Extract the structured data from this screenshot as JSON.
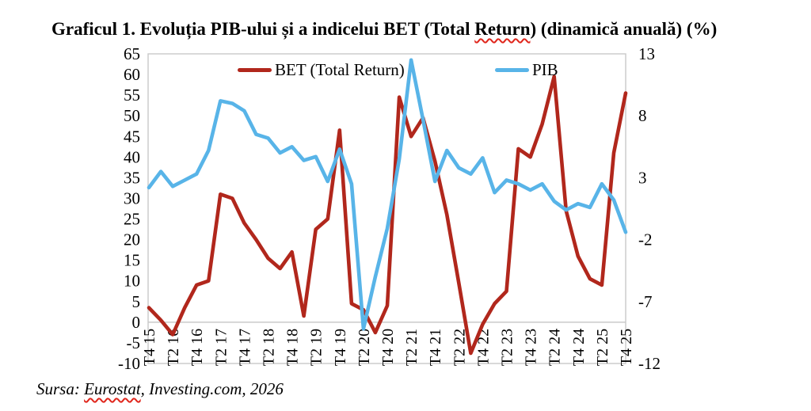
{
  "title": {
    "prefix": "Graficul 1. Evoluția PIB-ului și a indicelui BET (Total ",
    "spellcheck_word": "Return",
    "suffix": ") (dinamică anuală) (%)"
  },
  "source": {
    "prefix": "Sursa: ",
    "spellcheck_word": "Eurostat",
    "suffix": ", Investing.com, 2026"
  },
  "legend": {
    "items": [
      {
        "label": "BET (Total Return)",
        "color": "#b1271c"
      },
      {
        "label": "PIB",
        "color": "#58b4e8"
      }
    ],
    "position": "top-inside"
  },
  "colors": {
    "bet_line": "#b1271c",
    "pib_line": "#58b4e8",
    "gridline": "#c9c9c9",
    "plot_border": "#c9c9c9",
    "text": "#000000",
    "spellcheck_underline": "#e0261c",
    "background": "#ffffff"
  },
  "chart_data": {
    "type": "line",
    "title": "Graficul 1. Evoluția PIB-ului și a indicelui BET (Total Return) (dinamică anuală) (%)",
    "x": [
      "T4 15",
      "T1 16",
      "T2 16",
      "T3 16",
      "T4 16",
      "T1 17",
      "T2 17",
      "T3 17",
      "T4 17",
      "T1 18",
      "T2 18",
      "T3 18",
      "T4 18",
      "T1 19",
      "T2 19",
      "T3 19",
      "T4 19",
      "T1 20",
      "T2 20",
      "T3 20",
      "T4 20",
      "T1 21",
      "T2 21",
      "T3 21",
      "T4 21",
      "T1 22",
      "T2 22",
      "T3 22",
      "T4 22",
      "T1 23",
      "T2 23",
      "T3 23",
      "T4 23",
      "T1 24",
      "T2 24",
      "T3 24",
      "T4 24",
      "T1 25",
      "T2 25",
      "T3 25",
      "T4 25"
    ],
    "x_tick_labels": [
      "T4 15",
      "T2 16",
      "T4 16",
      "T2 17",
      "T4 17",
      "T2 18",
      "T4 18",
      "T2 19",
      "T4 19",
      "T2 20",
      "T4 20",
      "T2 21",
      "T4 21",
      "T2 22",
      "T4 22",
      "T2 23",
      "T4 23",
      "T2 24",
      "T4 24",
      "T2 25",
      "T4 25"
    ],
    "series": [
      {
        "name": "BET (Total Return)",
        "axis": "left",
        "color": "#b1271c",
        "values": [
          3.5,
          0.5,
          -3,
          3.5,
          9,
          10,
          31,
          30,
          24,
          20,
          15.5,
          13,
          17,
          1.5,
          22.5,
          25,
          46.5,
          4.5,
          3,
          -2.5,
          4,
          54.5,
          45,
          49.5,
          39,
          26,
          9.5,
          -7.5,
          -0.5,
          4.5,
          7.5,
          42,
          40,
          48,
          59.5,
          27,
          16,
          10.5,
          9,
          41,
          55.5
        ]
      },
      {
        "name": "PIB",
        "axis": "right",
        "color": "#58b4e8",
        "values": [
          2.2,
          3.5,
          2.3,
          2.8,
          3.3,
          5.2,
          9.2,
          9.0,
          8.4,
          6.5,
          6.2,
          5.0,
          5.5,
          4.4,
          4.7,
          2.7,
          5.3,
          2.5,
          -9.2,
          -5.0,
          -1.1,
          4.5,
          12.5,
          7.7,
          2.7,
          5.2,
          3.8,
          3.3,
          4.6,
          1.8,
          2.8,
          2.5,
          2.0,
          2.5,
          1.1,
          0.4,
          0.9,
          0.6,
          2.5,
          1.2,
          -1.4
        ]
      }
    ],
    "left_axis": {
      "min": -10,
      "max": 65,
      "step": 5,
      "ticks": [
        65,
        60,
        55,
        50,
        45,
        40,
        35,
        30,
        25,
        20,
        15,
        10,
        5,
        0,
        -5,
        -10
      ]
    },
    "right_axis": {
      "min": -12,
      "max": 13,
      "step": 5,
      "ticks": [
        13,
        8,
        3,
        -2,
        -7,
        -12
      ]
    },
    "gridlines": "zero-line-only",
    "legend_position": "top-inside",
    "ylabel": "",
    "xlabel": ""
  }
}
